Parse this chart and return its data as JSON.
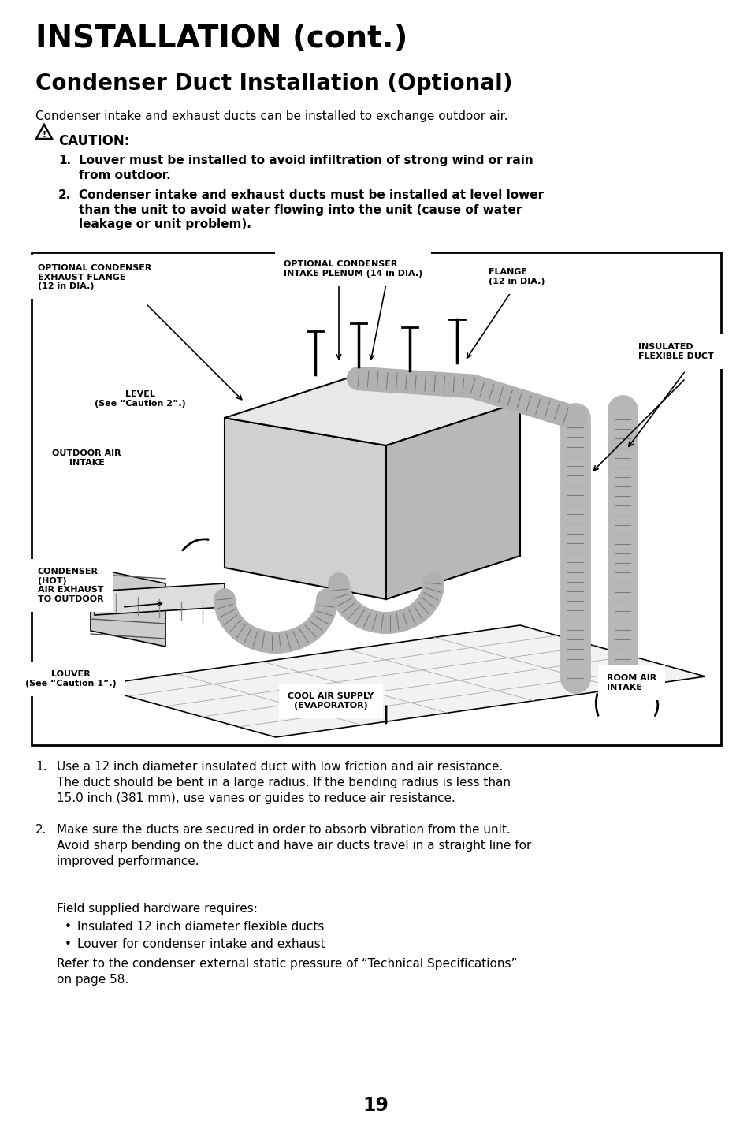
{
  "title1": "INSTALLATION (cont.)",
  "title2": "Condenser Duct Installation (Optional)",
  "intro_text": "Condenser intake and exhaust ducts can be installed to exchange outdoor air.",
  "caution_title": "CAUTION:",
  "caution_item1_num": "1.",
  "caution_item1": "Louver must be installed to avoid infiltration of strong wind or rain\nfrom outdoor.",
  "caution_item2_num": "2.",
  "caution_item2": "Condenser intake and exhaust ducts must be installed at level lower\nthan the unit to avoid water flowing into the unit (cause of water\nleakage or unit problem).",
  "num_item1": "Use a 12 inch diameter insulated duct with low friction and air resistance.\nThe duct should be bent in a large radius. If the bending radius is less than\n15.0 inch (381 mm), use vanes or guides to reduce air resistance.",
  "num_item2": "Make sure the ducts are secured in order to absorb vibration from the unit.\nAvoid sharp bending on the duct and have air ducts travel in a straight line for\nimproved performance.",
  "field_text": "Field supplied hardware requires:",
  "bullet1": "Insulated 12 inch diameter flexible ducts",
  "bullet2": "Louver for condenser intake and exhaust",
  "refer_text": "Refer to the condenser external static pressure of “Technical Specifications”\non page 58.",
  "page_number": "19",
  "bg_color": "#ffffff",
  "text_color": "#000000",
  "lbl_exhaust_flange": "OPTIONAL CONDENSER\nEXHAUST FLANGE\n(12 in DIA.)",
  "lbl_intake_plenum": "OPTIONAL CONDENSER\nINTAKE PLENUM (14 in DIA.)",
  "lbl_flange": "FLANGE\n(12 in DIA.)",
  "lbl_level": "LEVEL\n(See “Caution 2”.)",
  "lbl_outdoor_air": "OUTDOOR AIR\nINTAKE",
  "lbl_insulated": "INSULATED\nFLEXIBLE DUCT",
  "lbl_condenser_hot": "CONDENSER\n(HOT)\nAIR EXHAUST\nTO OUTDOOR",
  "lbl_louver": "LOUVER\n(See “Caution 1”.)",
  "lbl_cool_air": "COOL AIR SUPPLY\n(EVAPORATOR)",
  "lbl_room_air": "ROOM AIR\nINTAKE"
}
